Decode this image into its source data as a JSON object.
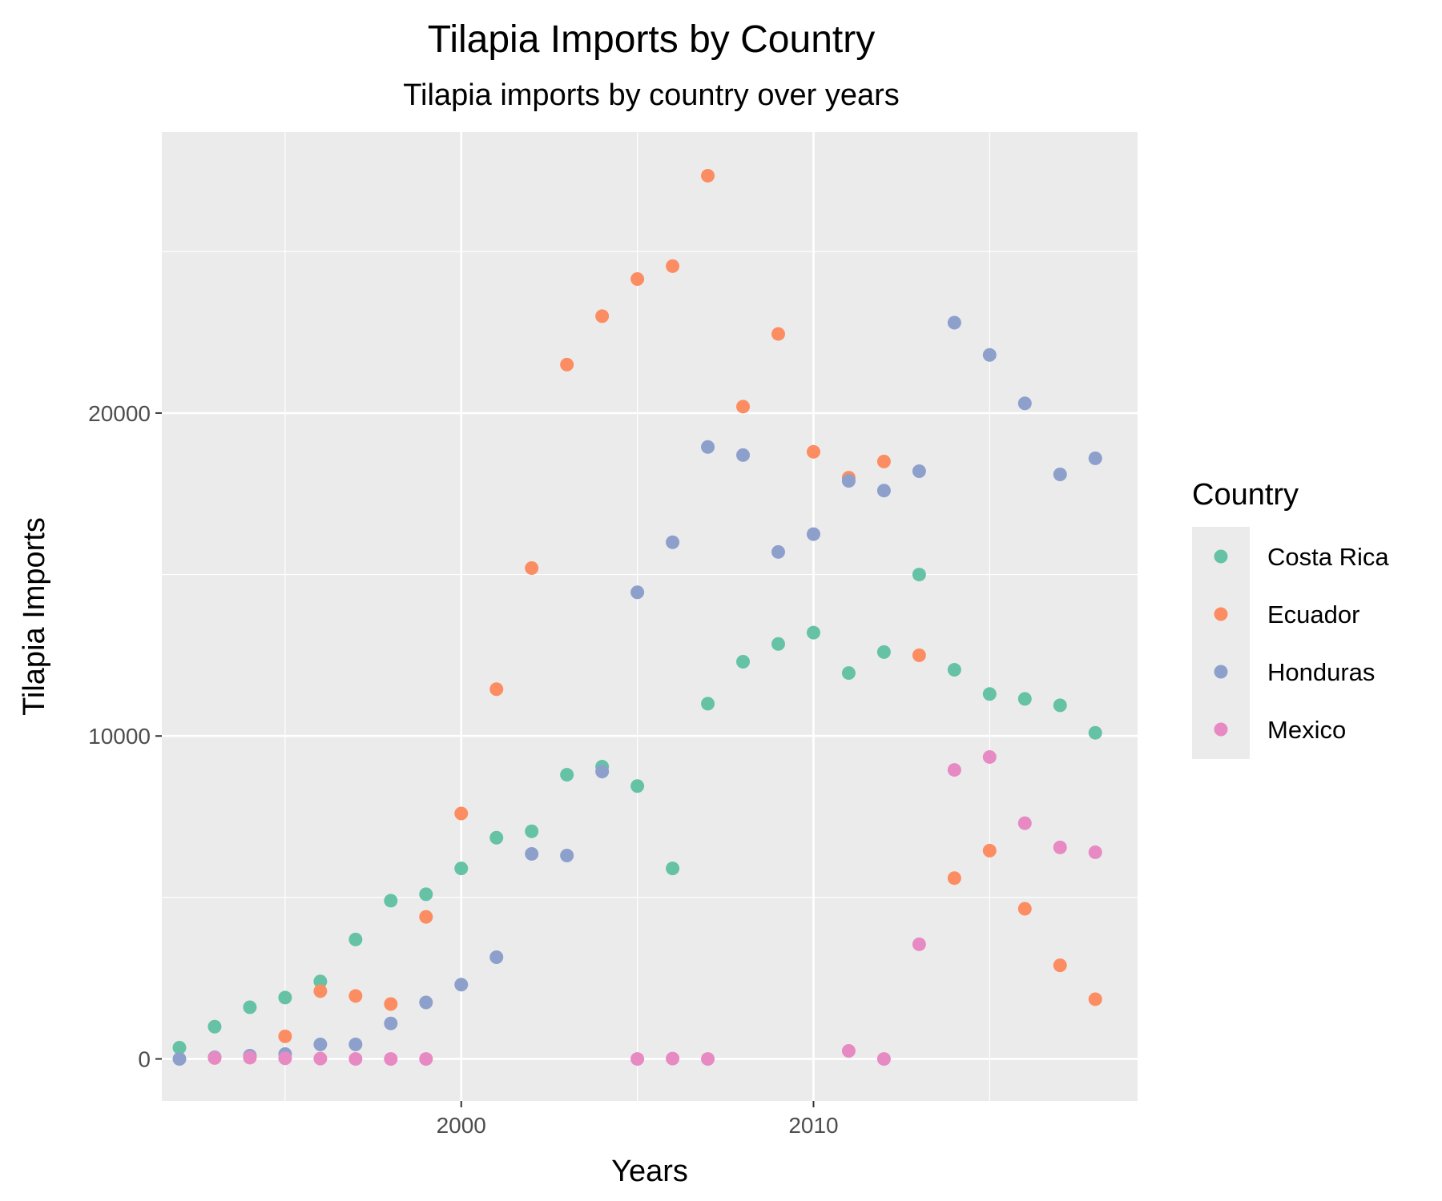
{
  "chart_data": {
    "type": "scatter",
    "title": "Tilapia Imports by Country",
    "subtitle": "Tilapia imports by country over years",
    "xlabel": "Years",
    "ylabel": "Tilapia Imports",
    "xlim": [
      1991.5,
      2019.2
    ],
    "ylim": [
      -1300,
      28700
    ],
    "x_ticks": [
      2000,
      2010
    ],
    "y_ticks": [
      0,
      10000,
      20000
    ],
    "x_minor": [
      1995,
      2005,
      2015
    ],
    "y_minor": [
      5000,
      15000,
      25000
    ],
    "grid": true,
    "legend": {
      "title": "Country",
      "position": "right"
    },
    "series": [
      {
        "name": "Costa Rica",
        "color": "#66C2A5",
        "points": [
          [
            1992,
            350
          ],
          [
            1993,
            1000
          ],
          [
            1994,
            1600
          ],
          [
            1995,
            1900
          ],
          [
            1996,
            2400
          ],
          [
            1997,
            3700
          ],
          [
            1998,
            4900
          ],
          [
            1999,
            5100
          ],
          [
            2000,
            5900
          ],
          [
            2001,
            6850
          ],
          [
            2002,
            7050
          ],
          [
            2003,
            8800
          ],
          [
            2004,
            9050
          ],
          [
            2005,
            8450
          ],
          [
            2006,
            5900
          ],
          [
            2007,
            11000
          ],
          [
            2008,
            12300
          ],
          [
            2009,
            12850
          ],
          [
            2010,
            13200
          ],
          [
            2011,
            11950
          ],
          [
            2012,
            12600
          ],
          [
            2013,
            15000
          ],
          [
            2014,
            12050
          ],
          [
            2015,
            11300
          ],
          [
            2016,
            11150
          ],
          [
            2017,
            10950
          ],
          [
            2018,
            10100
          ]
        ]
      },
      {
        "name": "Ecuador",
        "color": "#FC8D62",
        "points": [
          [
            1995,
            700
          ],
          [
            1996,
            2100
          ],
          [
            1997,
            1950
          ],
          [
            1998,
            1700
          ],
          [
            1999,
            4400
          ],
          [
            2000,
            7600
          ],
          [
            2001,
            11450
          ],
          [
            2002,
            15200
          ],
          [
            2003,
            21500
          ],
          [
            2004,
            23000
          ],
          [
            2005,
            24150
          ],
          [
            2006,
            24550
          ],
          [
            2007,
            27350
          ],
          [
            2008,
            20200
          ],
          [
            2009,
            22450
          ],
          [
            2010,
            18800
          ],
          [
            2011,
            18000
          ],
          [
            2012,
            18500
          ],
          [
            2013,
            12500
          ],
          [
            2014,
            5600
          ],
          [
            2015,
            6450
          ],
          [
            2016,
            4650
          ],
          [
            2017,
            2900
          ],
          [
            2018,
            1850
          ]
        ]
      },
      {
        "name": "Honduras",
        "color": "#8DA0CB",
        "points": [
          [
            1992,
            0
          ],
          [
            1993,
            50
          ],
          [
            1994,
            100
          ],
          [
            1995,
            150
          ],
          [
            1996,
            450
          ],
          [
            1997,
            450
          ],
          [
            1998,
            1100
          ],
          [
            1999,
            1750
          ],
          [
            2000,
            2300
          ],
          [
            2001,
            3150
          ],
          [
            2002,
            6350
          ],
          [
            2003,
            6300
          ],
          [
            2004,
            8900
          ],
          [
            2005,
            14450
          ],
          [
            2006,
            16000
          ],
          [
            2007,
            18950
          ],
          [
            2008,
            18700
          ],
          [
            2009,
            15700
          ],
          [
            2010,
            16250
          ],
          [
            2011,
            17900
          ],
          [
            2012,
            17600
          ],
          [
            2013,
            18200
          ],
          [
            2014,
            22800
          ],
          [
            2015,
            21800
          ],
          [
            2016,
            20300
          ],
          [
            2017,
            18100
          ],
          [
            2018,
            18600
          ]
        ]
      },
      {
        "name": "Mexico",
        "color": "#E78AC3",
        "points": [
          [
            1993,
            30
          ],
          [
            1994,
            40
          ],
          [
            1995,
            20
          ],
          [
            1996,
            10
          ],
          [
            1997,
            0
          ],
          [
            1998,
            0
          ],
          [
            1999,
            0
          ],
          [
            2005,
            0
          ],
          [
            2006,
            10
          ],
          [
            2007,
            0
          ],
          [
            2011,
            250
          ],
          [
            2012,
            0
          ],
          [
            2013,
            3550
          ],
          [
            2014,
            8950
          ],
          [
            2015,
            9350
          ],
          [
            2016,
            7300
          ],
          [
            2017,
            6550
          ],
          [
            2018,
            6400
          ]
        ]
      }
    ]
  }
}
